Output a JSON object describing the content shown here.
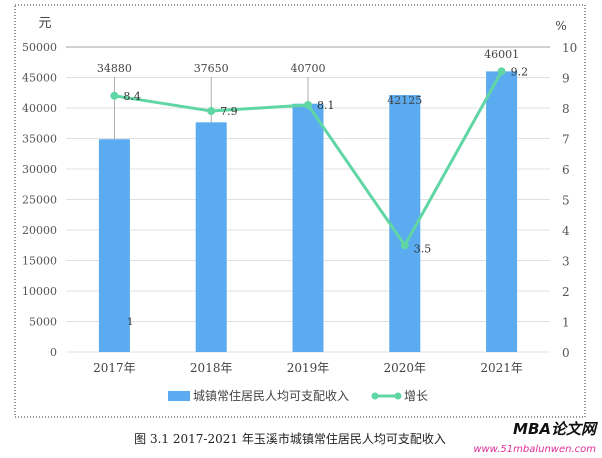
{
  "chart_data": {
    "type": "bar+line",
    "categories": [
      "2017年",
      "2018年",
      "2019年",
      "2020年",
      "2021年"
    ],
    "series": [
      {
        "name": "城镇常住居民人均可支配收入",
        "type": "bar",
        "axis": "left",
        "values": [
          34880,
          37650,
          40700,
          42125,
          46001
        ],
        "color": "#5aabf0"
      },
      {
        "name": "增长",
        "type": "line",
        "axis": "right",
        "values": [
          8.4,
          7.9,
          8.1,
          3.5,
          9.2
        ],
        "color": "#5fd6a4"
      }
    ],
    "left_axis": {
      "label": "元",
      "ylim": [
        0,
        50000
      ],
      "ticks": [
        "0",
        "5000",
        "10000",
        "15000",
        "20000",
        "25000",
        "30000",
        "35000",
        "40000",
        "45000",
        "50000"
      ]
    },
    "right_axis": {
      "label": "%",
      "ylim": [
        0,
        10
      ],
      "ticks": [
        "0",
        "1",
        "2",
        "3",
        "4",
        "5",
        "6",
        "7",
        "8",
        "9",
        "10"
      ]
    },
    "stray_label": "1",
    "grid": true,
    "legend": "bottom"
  },
  "caption": "图 3.1   2017-2021 年玉溪市城镇常住居民人均可支配收入",
  "watermark": {
    "title": "MBA论文网",
    "url": "www.51mbalunwen.com"
  }
}
